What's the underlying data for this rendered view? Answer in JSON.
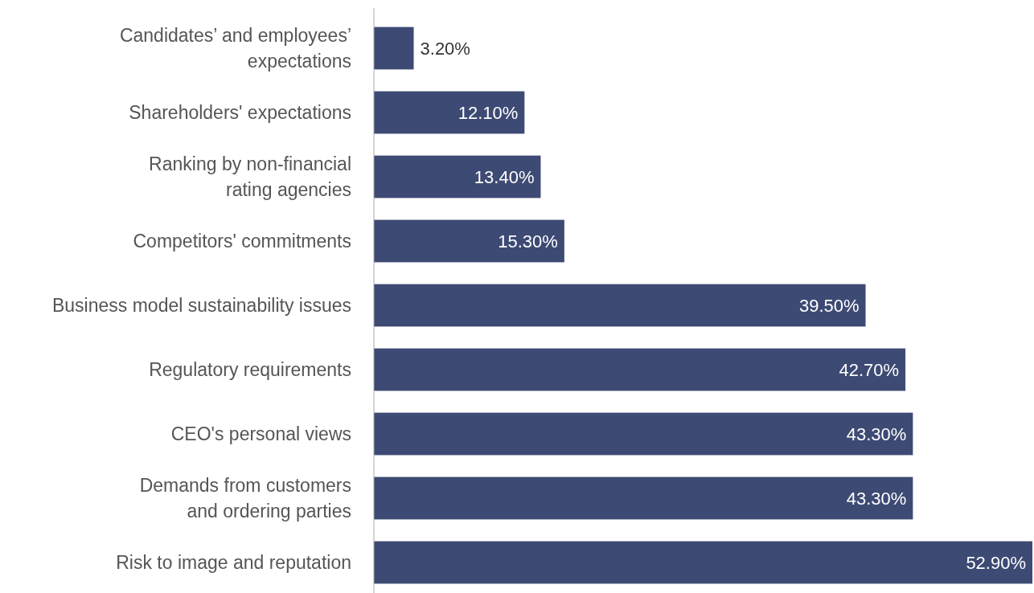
{
  "chart_data": {
    "type": "bar",
    "orientation": "horizontal",
    "tick_labels": "y",
    "categories": [
      "Candidates’ and employees’\nexpectations",
      "Shareholders' expectations",
      "Ranking by non-financial\nrating agencies",
      "Competitors' commitments",
      "Business model sustainability issues",
      "Regulatory requirements",
      "CEO's personal views",
      "Demands from customers\nand ordering parties",
      "Risk to image and reputation"
    ],
    "values": [
      3.2,
      12.1,
      13.4,
      15.3,
      39.5,
      42.7,
      43.3,
      43.3,
      52.9
    ],
    "value_labels": [
      "3.20%",
      "12.10%",
      "13.40%",
      "15.30%",
      "39.50%",
      "42.70%",
      "43.30%",
      "43.30%",
      "52.90%"
    ],
    "color": "#3d4a74"
  }
}
